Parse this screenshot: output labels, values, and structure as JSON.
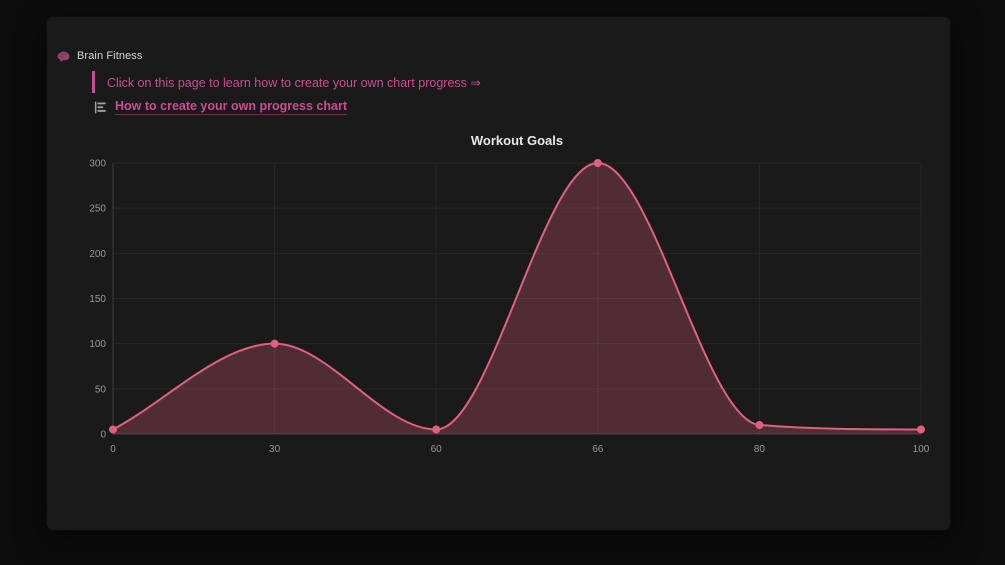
{
  "page": {
    "breadcrumb": "Brain Fitness"
  },
  "callout": {
    "text": "Click on this page to learn how to create your own chart progress ⇒"
  },
  "link": {
    "label": "How to create your own progress chart"
  },
  "colors": {
    "accent_pink": "#cc4b96",
    "chart_line": "#e0607f",
    "chart_fill": "rgba(224,96,127,0.28)",
    "card_bg": "#1a1a1a",
    "page_bg": "#0c0c0c",
    "grid": "#272727",
    "axis": "#3e3e3e",
    "tick_text": "#989898",
    "icon_gray": "#9e9e9e",
    "brain_pink": "#93germ"
  },
  "chart_data": {
    "type": "area",
    "title": "Workout Goals",
    "categories": [
      "0",
      "30",
      "60",
      "66",
      "80",
      "100"
    ],
    "series": [
      {
        "name": "Workout Goals",
        "values": [
          5,
          100,
          5,
          300,
          10,
          5
        ]
      }
    ],
    "xlabel": "",
    "ylabel": "",
    "ylim": [
      0,
      300
    ],
    "yticks": [
      0,
      50,
      100,
      150,
      200,
      250,
      300
    ],
    "grid": true,
    "legend": false,
    "smooth": true,
    "markers": true
  }
}
